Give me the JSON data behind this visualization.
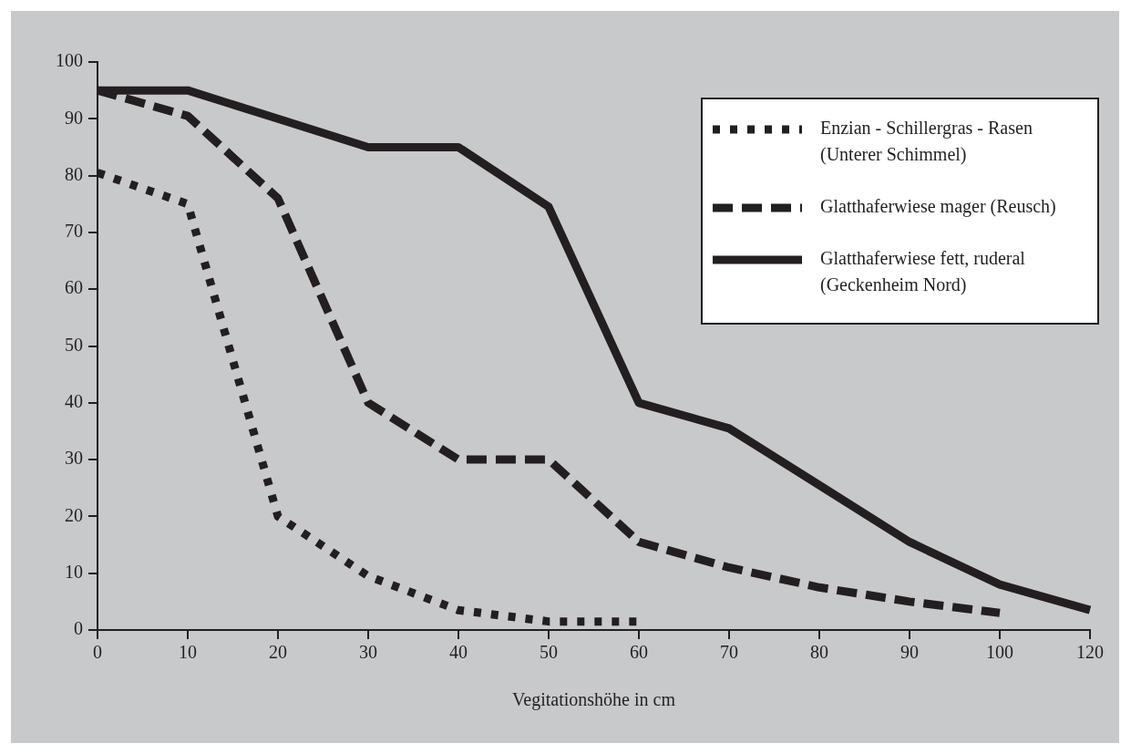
{
  "chart_data": {
    "type": "line",
    "xlabel": "Vegitationshöhe in cm",
    "categories": [
      "0",
      "10",
      "20",
      "30",
      "40",
      "50",
      "60",
      "70",
      "80",
      "90",
      "100",
      "120"
    ],
    "series": [
      {
        "name": "Enzian - Schillergras - Rasen (Unterer Schimmel)",
        "color": "#231f20",
        "line_style": "dotted",
        "values": [
          80.5,
          75,
          20,
          9.5,
          3.5,
          1.5,
          1.5,
          null,
          null,
          null,
          null,
          null
        ]
      },
      {
        "name": "Glatthaferwiese mager (Reusch)",
        "color": "#231f20",
        "line_style": "dashed",
        "values": [
          95,
          90.5,
          76,
          40,
          30,
          30,
          15.5,
          11,
          7.5,
          5,
          3,
          null
        ]
      },
      {
        "name": "Glatthaferwiese fett, ruderal (Geckenheim Nord)",
        "color": "#231f20",
        "line_style": "solid",
        "values": [
          95,
          95,
          90,
          85,
          85,
          74.5,
          40,
          35.5,
          25.5,
          15.5,
          8,
          3.5
        ]
      }
    ],
    "ylim": [
      0,
      100
    ],
    "yticks": [
      0,
      10,
      20,
      30,
      40,
      50,
      60,
      70,
      80,
      90,
      100
    ],
    "grid": false,
    "legend": "top right",
    "marker": "none"
  }
}
